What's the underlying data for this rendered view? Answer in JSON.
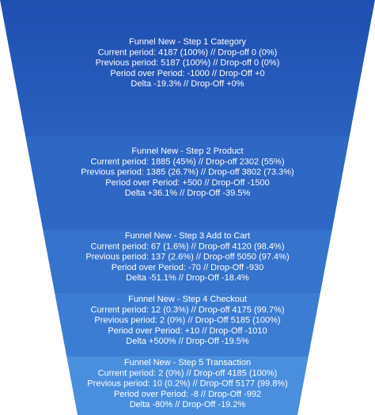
{
  "chart_data": {
    "type": "funnel",
    "colors": [
      "#2456b6",
      "#2e67c4",
      "#3573cc",
      "#3c7dd3",
      "#4a8ede"
    ],
    "stages": [
      {
        "title": "Funnel New - Step 1 Category",
        "current": 4187,
        "current_pct": 100,
        "lines": [
          "Funnel New - Step 1 Category",
          "Current period: 4187 (100%) // Drop-off 0 (0%)",
          "Previous period: 5187 (100%) // Drop-off 0 (0%)",
          "Period over Period: -1000 // Drop-Off +0",
          "Delta -19.3% // Drop-Off +0%"
        ]
      },
      {
        "title": "Funnel New - Step 2 Product",
        "current": 1885,
        "current_pct": 45,
        "lines": [
          "Funnel New - Step 2 Product",
          "Current period: 1885 (45%) // Drop-off 2302 (55%)",
          "Previous period: 1385 (26.7%) // Drop-off 3802 (73.3%)",
          "Period over Period: +500 // Drop-Off -1500",
          "Delta +36.1% // Drop-Off -39.5%"
        ]
      },
      {
        "title": "Funnel New - Step 3 Add to Cart",
        "current": 67,
        "current_pct": 1.6,
        "lines": [
          "Funnel New - Step 3 Add to Cart",
          "Current period: 67 (1.6%) // Drop-off 4120 (98.4%)",
          "Previous period: 137 (2.6%) // Drop-off 5050 (97.4%)",
          "Period over Period: -70 // Drop-Off -930",
          "Delta -51.1% // Drop-Off -18.4%"
        ]
      },
      {
        "title": "Funnel New - Step 4 Checkout",
        "current": 12,
        "current_pct": 0.3,
        "lines": [
          "Funnel New - Step 4 Checkout",
          "Current period: 12 (0.3%) // Drop-off 4175 (99.7%)",
          "Previous period: 2 (0%) // Drop-Off 5185 (100%)",
          "Period over Period: +10 // Drop-Off -1010",
          "Delta +500% // Drop-Off -19.5%"
        ]
      },
      {
        "title": "Funnel New - Step 5 Transaction",
        "current": 2,
        "current_pct": 0,
        "lines": [
          "Funnel New - Step 5 Transaction",
          "Current period: 2 (0%) // Drop-off 4185 (100%)",
          "Previous period: 10 (0.2%) // Drop-Off 5177 (99.8%)",
          "Period over Period: -8 // Drop-Off -992",
          "Delta -80% // Drop-Off -19.2%"
        ]
      }
    ]
  }
}
